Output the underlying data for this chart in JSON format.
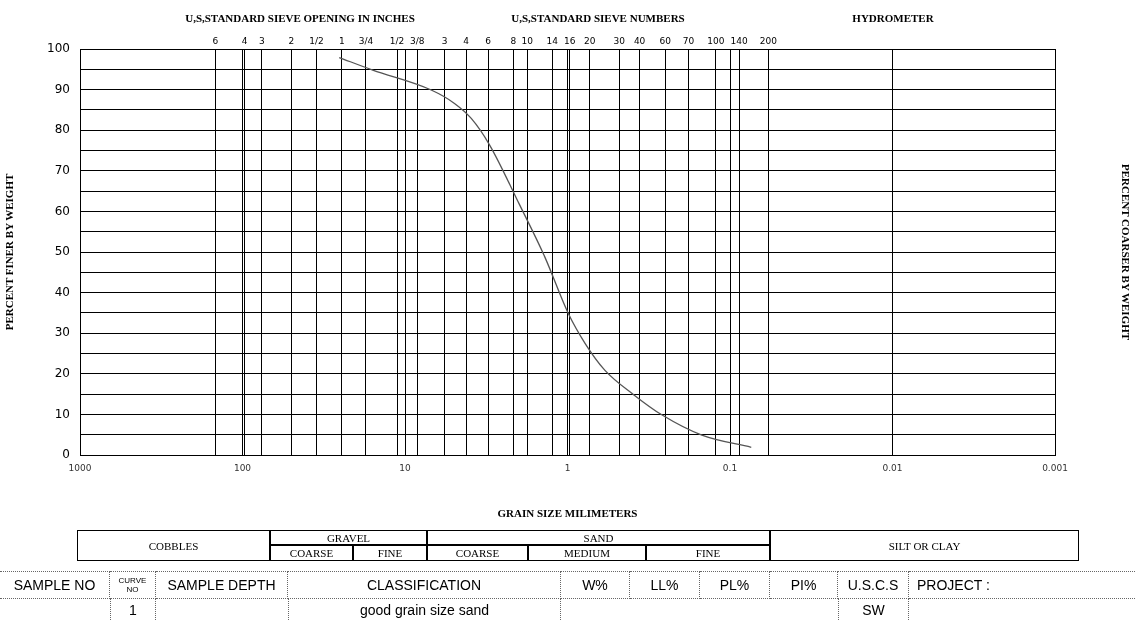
{
  "chart_data": {
    "type": "line",
    "xlabel": "GRAIN SIZE MILIMETERS",
    "ylabel": "PERCENT FINER BY WEIGHT",
    "y2label": "PERCENT COARSER BY WEIGHT",
    "log": "x",
    "xlim": [
      1000,
      0.001
    ],
    "xticks": [
      1000,
      100,
      10,
      1,
      0.1,
      0.01,
      0.001,
      {
        "value": 147,
        "label": null
      },
      {
        "value": 97,
        "label": null
      },
      {
        "value": 76,
        "label": null
      },
      {
        "value": 50,
        "label": null
      },
      {
        "value": 35,
        "label": null
      },
      {
        "value": 24.5,
        "label": null
      },
      {
        "value": 17.4,
        "label": null
      },
      {
        "value": 11.2,
        "label": null
      },
      {
        "value": 8.4,
        "label": null
      },
      {
        "value": 5.7,
        "label": null
      },
      {
        "value": 4.2,
        "label": null
      },
      {
        "value": 3.08,
        "label": null
      },
      {
        "value": 2.15,
        "label": null
      },
      {
        "value": 1.77,
        "label": null
      },
      {
        "value": 1.24,
        "label": null
      },
      {
        "value": 0.97,
        "label": null
      },
      {
        "value": 0.73,
        "label": null
      },
      {
        "value": 0.48,
        "label": null
      },
      {
        "value": 0.36,
        "label": null
      },
      {
        "value": 0.25,
        "label": null
      },
      {
        "value": 0.18,
        "label": null
      },
      {
        "value": 0.122,
        "label": null
      },
      {
        "value": 0.088,
        "label": null
      },
      {
        "value": 0.058,
        "label": null
      }
    ],
    "ylim": [
      0,
      100
    ],
    "yticks": [
      0,
      {
        "value": 5,
        "label": null
      },
      10,
      {
        "value": 15,
        "label": null
      },
      20,
      {
        "value": 25,
        "label": null
      },
      30,
      {
        "value": 35,
        "label": null
      },
      40,
      {
        "value": 45,
        "label": null
      },
      50,
      {
        "value": 55,
        "label": null
      },
      60,
      {
        "value": 65,
        "label": null
      },
      70,
      {
        "value": 75,
        "label": null
      },
      80,
      {
        "value": 85,
        "label": null
      },
      90,
      {
        "value": 95,
        "label": null
      },
      100
    ],
    "grid": true,
    "legend": false,
    "x": [
      25.4,
      15.8,
      6.9,
      4.96,
      3.91,
      3.02,
      1.97,
      1.38,
      0.99,
      0.78,
      0.59,
      0.39,
      0.263,
      0.149,
      0.074
    ],
    "series": [
      {
        "color": "#555555",
        "values": [
          97.9,
          94.8,
          89.9,
          86.6,
          82.9,
          76.4,
          61.6,
          48.8,
          34.9,
          27.5,
          20.9,
          14.8,
          9.9,
          4.9,
          1.9
        ]
      }
    ],
    "annotations": [
      "U,S,STANDARD SIEVE OPENING IN INCHES",
      "U,S,STANDARD SIEVE NUMBERS",
      "HYDROMETER",
      "COBBLES",
      "GRAVEL",
      "COARSE",
      "FINE",
      "SAND",
      "COARSE",
      "MEDIUM",
      "FINE",
      "SILT OR CLAY",
      "SAMPLE NO",
      "CURVE NO",
      "SAMPLE DEPTH",
      "CLASSIFICATION",
      "W%",
      "LL%",
      "PL%",
      "PI%",
      "U.S.C.S",
      "PROJECT :",
      "1",
      "good grain size sand",
      "SW",
      "6",
      "4",
      "3",
      "2",
      "1/2",
      "1",
      "3/4",
      "1/2",
      "3/8",
      "3",
      "4",
      "6",
      "8",
      "10",
      "14",
      "16",
      "20",
      "30",
      "40",
      "60",
      "70",
      "100",
      "140",
      "200"
    ]
  }
}
